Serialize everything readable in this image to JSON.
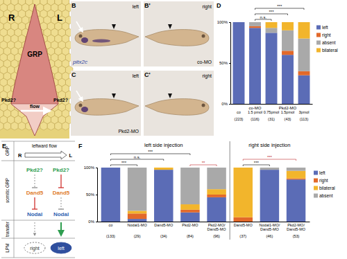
{
  "panel_labels": [
    "B",
    "B'",
    "C",
    "C'",
    "D",
    "E",
    "F"
  ],
  "panel_a": {
    "sides": [
      "R",
      "L"
    ],
    "region": "GRP",
    "flow": "flow",
    "sensors": [
      "Pkd2?",
      "Pkd2?"
    ]
  },
  "embryos": {
    "views": [
      "left",
      "right"
    ],
    "stain": "pitx2c",
    "conditions": [
      "co-MO",
      "Pkd2-MO"
    ]
  },
  "chart_data": [
    {
      "type": "bar",
      "stacked": true,
      "categories": [
        "co",
        "1.5 pmol",
        "0.75pmol",
        "1.5pmol",
        "3pmol"
      ],
      "count_labels": [
        "(223)",
        "(116)",
        "(31)",
        "(43)",
        "(113)"
      ],
      "groups": [
        {
          "label": "co-MO",
          "from": 1,
          "to": 1
        },
        {
          "label": "Pkd2-MO",
          "from": 2,
          "to": 4
        }
      ],
      "series": [
        {
          "name": "left",
          "color": "#5b6cb6",
          "values": [
            100,
            93,
            87,
            60,
            35
          ]
        },
        {
          "name": "right",
          "color": "#e2692a",
          "values": [
            0,
            2,
            0,
            5,
            5
          ]
        },
        {
          "name": "absent",
          "color": "#a9a9a9",
          "values": [
            0,
            5,
            6,
            25,
            40
          ]
        },
        {
          "name": "bilateral",
          "color": "#f2b52c",
          "values": [
            0,
            0,
            7,
            10,
            20
          ]
        }
      ],
      "ylim": [
        0,
        100
      ],
      "yticks": [
        {
          "value": 0,
          "label": "0%"
        },
        {
          "value": 50,
          "label": "50%"
        },
        {
          "value": 100,
          "label": "100%"
        }
      ],
      "significance": [
        {
          "label": "n.s.",
          "between": [
            1,
            2
          ]
        },
        {
          "label": "***",
          "between": [
            1,
            3
          ]
        },
        {
          "label": "***",
          "between": [
            1,
            4
          ]
        }
      ],
      "legend": "right"
    },
    {
      "type": "bar",
      "stacked": true,
      "categories": [
        "co",
        "Nodal1-MO",
        "Dand5-MO",
        "Pkd2-MO",
        "Pkd2-MO/Dand5-MO",
        "Dand5-MO",
        "Nodal1-MO/Dand5-MO",
        "Pkd2-MO/Dand5-MO"
      ],
      "count_labels": [
        "(133)",
        "(29)",
        "(34)",
        "(84)",
        "(96)",
        "(37)",
        "(46)",
        "(53)"
      ],
      "sections": [
        {
          "label": "left side injection",
          "from": 0,
          "to": 4
        },
        {
          "label": "right side injection",
          "from": 5,
          "to": 7
        }
      ],
      "series": [
        {
          "name": "left",
          "color": "#5b6cb6",
          "values": [
            100,
            5,
            96,
            17,
            45,
            0,
            96,
            78
          ]
        },
        {
          "name": "right",
          "color": "#e2692a",
          "values": [
            0,
            10,
            0,
            5,
            5,
            8,
            0,
            2
          ]
        },
        {
          "name": "bilateral",
          "color": "#f2b52c",
          "values": [
            0,
            5,
            4,
            10,
            10,
            92,
            0,
            14
          ]
        },
        {
          "name": "absent",
          "color": "#a9a9a9",
          "values": [
            0,
            80,
            0,
            68,
            40,
            0,
            4,
            6
          ]
        }
      ],
      "ylim": [
        0,
        100
      ],
      "yticks": [
        {
          "value": 0,
          "label": "0%"
        },
        {
          "value": 50,
          "label": "50%"
        },
        {
          "value": 100,
          "label": "100%"
        }
      ],
      "significance": [
        {
          "label": "***",
          "between": [
            0,
            1
          ]
        },
        {
          "label": "n.s.",
          "between": [
            0,
            2
          ]
        },
        {
          "label": "***",
          "between": [
            0,
            3
          ]
        },
        {
          "label": "**",
          "between": [
            3,
            4
          ],
          "color": "#c0282d"
        },
        {
          "label": "***",
          "between": [
            5,
            6
          ]
        },
        {
          "label": "***",
          "between": [
            5,
            7
          ],
          "color": "#c0282d"
        }
      ],
      "legend": "right"
    }
  ],
  "panel_e": {
    "rows": [
      "GRP",
      "somitic GRP",
      "transfer",
      "LPM"
    ],
    "flow": {
      "label": "leftward flow",
      "from": "R",
      "to": "L"
    },
    "columns": [
      {
        "sensor": "Pkd2?",
        "inhibitor": "Dand5",
        "target": "Nodal",
        "outcome": "right"
      },
      {
        "sensor": "Pkd2?",
        "inhibitor": "Dand5",
        "target": "Nodal",
        "outcome": "left"
      }
    ]
  }
}
